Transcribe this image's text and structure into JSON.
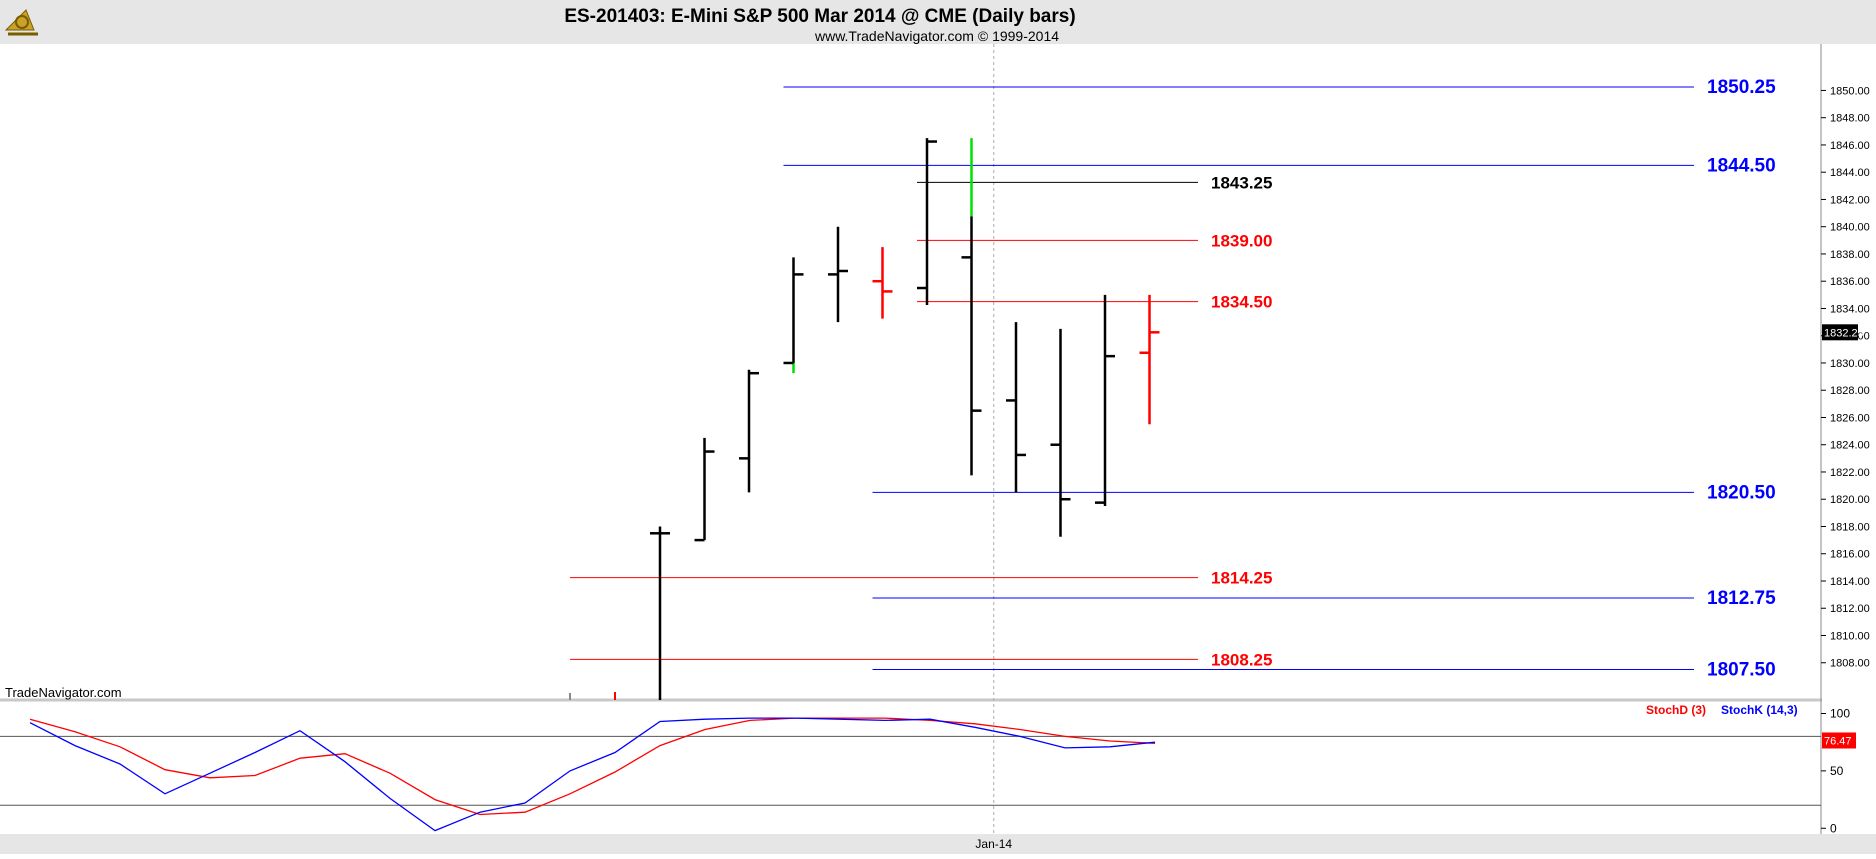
{
  "header": {
    "title": "ES-201403:  E-Mini S&P 500 Mar 2014 @ CME  (Daily bars)",
    "subtitle": "www.TradeNavigator.com © 1999-2014",
    "logo_icon": "sextant-logo-icon"
  },
  "watermark": "TradeNavigator.com",
  "colors": {
    "background": "#ffffff",
    "header_bg": "#e6e6e6",
    "bar_black": "#000000",
    "bar_red": "#ff0000",
    "bar_green": "#00e000",
    "level_blue": "#0000ff",
    "level_red": "#ff0000",
    "level_black": "#000000",
    "stoch_k": "#0000ff",
    "stoch_d": "#ff0000"
  },
  "chart_data": {
    "type": "ohlc",
    "title": "ES-201403:  E-Mini S&P 500 Mar 2014 @ CME  (Daily bars)",
    "price_axis": {
      "ylim": [
        1806.0,
        1851.5
      ],
      "ticks": [
        "1808.00",
        "1810.00",
        "1812.00",
        "1814.00",
        "1816.00",
        "1818.00",
        "1820.00",
        "1822.00",
        "1824.00",
        "1826.00",
        "1828.00",
        "1830.00",
        "1832.00",
        "1834.00",
        "1836.00",
        "1838.00",
        "1840.00",
        "1842.00",
        "1844.00",
        "1846.00",
        "1848.00",
        "1850.00"
      ],
      "last_price": "1832.25"
    },
    "x_axis": {
      "label": "Jan-14",
      "label_bar_index": 7.5,
      "count": 13
    },
    "bars": [
      {
        "i": 0,
        "open": 1817.5,
        "high": 1818.0,
        "low": 1805.0,
        "close": 1817.5,
        "color": "black"
      },
      {
        "i": 1,
        "open": 1817.0,
        "high": 1824.5,
        "low": 1817.0,
        "close": 1823.5,
        "color": "black"
      },
      {
        "i": 2,
        "open": 1823.0,
        "high": 1829.5,
        "low": 1820.5,
        "close": 1829.25,
        "color": "black"
      },
      {
        "i": 3,
        "open": 1830.0,
        "high": 1837.75,
        "low": 1829.25,
        "close": 1836.5,
        "color": "black",
        "low_color": "green"
      },
      {
        "i": 4,
        "open": 1836.5,
        "high": 1840.0,
        "low": 1833.0,
        "close": 1836.75,
        "color": "black"
      },
      {
        "i": 5,
        "open": 1836.0,
        "high": 1838.5,
        "low": 1833.25,
        "close": 1835.25,
        "color": "red"
      },
      {
        "i": 6,
        "open": 1835.5,
        "high": 1846.5,
        "low": 1834.25,
        "close": 1846.25,
        "color": "black"
      },
      {
        "i": 7,
        "open": 1837.75,
        "high": 1846.5,
        "low": 1821.75,
        "close": 1826.5,
        "color": "black",
        "high_color": "green",
        "green_from": 1840.75
      },
      {
        "i": 8,
        "open": 1827.25,
        "high": 1833.0,
        "low": 1820.5,
        "close": 1823.25,
        "color": "black"
      },
      {
        "i": 9,
        "open": 1824.0,
        "high": 1832.5,
        "low": 1817.25,
        "close": 1820.0,
        "color": "black"
      },
      {
        "i": 10,
        "open": 1819.75,
        "high": 1835.0,
        "low": 1819.5,
        "close": 1830.5,
        "color": "black"
      },
      {
        "i": 11,
        "open": 1830.75,
        "high": 1835.0,
        "low": 1825.5,
        "close": 1832.25,
        "color": "red"
      }
    ],
    "levels": [
      {
        "label": "1850.25",
        "value": 1850.25,
        "color": "blue",
        "from": 3,
        "to": "axis"
      },
      {
        "label": "1844.50",
        "value": 1844.5,
        "color": "blue",
        "from": 3,
        "to": "axis"
      },
      {
        "label": "1843.25",
        "value": 1843.25,
        "color": "black",
        "from": 6,
        "to": "short"
      },
      {
        "label": "1839.00",
        "value": 1839.0,
        "color": "red",
        "from": 6,
        "to": "short"
      },
      {
        "label": "1834.50",
        "value": 1834.5,
        "color": "red",
        "from": 6,
        "to": "short"
      },
      {
        "label": "1820.50",
        "value": 1820.5,
        "color": "blue",
        "from": 5,
        "to": "axis"
      },
      {
        "label": "1814.25",
        "value": 1814.25,
        "color": "red",
        "from": 0,
        "to": "short"
      },
      {
        "label": "1812.75",
        "value": 1812.75,
        "color": "blue",
        "from": 5,
        "to": "axis"
      },
      {
        "label": "1808.25",
        "value": 1808.25,
        "color": "red",
        "from": 0,
        "to": "short"
      },
      {
        "label": "1807.50",
        "value": 1807.5,
        "color": "blue",
        "from": 5,
        "to": "axis"
      }
    ],
    "stochastic": {
      "legend_d": "StochD (3)",
      "legend_k": "StochK (14,3)",
      "ylim": [
        -5,
        110
      ],
      "ticks": [
        "0",
        "50",
        "100"
      ],
      "reference_lines": [
        20,
        80
      ],
      "last_value": "76.47",
      "k_values": [
        92,
        72,
        56,
        30,
        48,
        66,
        85,
        58,
        26,
        -2,
        14,
        22,
        50,
        66,
        93,
        95,
        96,
        96,
        95,
        94,
        95,
        88,
        80,
        70,
        71,
        75
      ],
      "d_values": [
        95,
        84,
        71,
        51,
        44,
        46,
        61,
        65,
        48,
        25,
        12,
        14,
        30,
        49,
        72,
        86,
        94,
        96,
        96,
        96,
        94,
        91,
        86,
        80,
        76,
        74
      ]
    }
  }
}
